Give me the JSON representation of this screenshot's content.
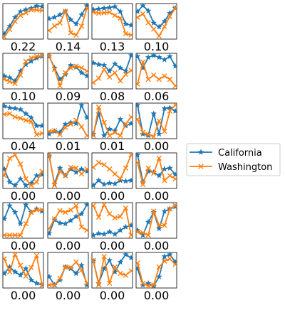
{
  "chart_data": {
    "type": "line",
    "layout": "small-multiples grid (6 rows x 4 columns), each panel with hidden axes and a numeric score printed below",
    "legend": {
      "placement": "right",
      "entries": [
        {
          "name": "California",
          "color": "#1f77b4",
          "marker": "star"
        },
        {
          "name": "Washington",
          "color": "#ff7f0e",
          "marker": "x"
        }
      ]
    },
    "x_points": [
      0,
      1,
      2,
      3,
      4,
      5,
      6,
      7
    ],
    "ylim": [
      0,
      1
    ],
    "panels": [
      {
        "value": "0.22",
        "series": [
          [
            0.12,
            0.35,
            0.62,
            0.8,
            0.86,
            0.9,
            0.97,
            0.95
          ],
          [
            0.03,
            0.25,
            0.5,
            0.68,
            0.76,
            0.85,
            0.85,
            0.83
          ]
        ]
      },
      {
        "value": "0.14",
        "series": [
          [
            0.58,
            0.62,
            0.7,
            0.8,
            0.55,
            0.42,
            0.7,
            0.98
          ],
          [
            0.22,
            0.36,
            0.45,
            0.81,
            0.15,
            0.08,
            0.35,
            0.9
          ]
        ]
      },
      {
        "value": "0.13",
        "series": [
          [
            0.86,
            0.88,
            0.9,
            0.92,
            0.95,
            0.8,
            0.42,
            0.38
          ],
          [
            0.78,
            0.75,
            0.76,
            0.78,
            0.68,
            0.6,
            0.12,
            0.08
          ]
        ]
      },
      {
        "value": "0.10",
        "series": [
          [
            0.8,
            0.98,
            0.82,
            0.45,
            0.33,
            0.5,
            0.75,
            0.9
          ],
          [
            0.62,
            0.73,
            0.46,
            0.26,
            0.05,
            0.34,
            0.65,
            0.9
          ]
        ]
      },
      {
        "value": "0.10",
        "series": [
          [
            0.35,
            0.3,
            0.2,
            0.5,
            0.7,
            0.8,
            0.9,
            0.95
          ],
          [
            0.25,
            0.18,
            0.12,
            0.38,
            0.8,
            0.9,
            0.95,
            0.97
          ]
        ]
      },
      {
        "value": "0.09",
        "series": [
          [
            0.95,
            0.6,
            0.25,
            0.4,
            0.68,
            0.62,
            0.45,
            0.35
          ],
          [
            0.98,
            0.55,
            0.05,
            0.45,
            0.6,
            0.65,
            0.6,
            0.5
          ]
        ]
      },
      {
        "value": "0.08",
        "series": [
          [
            0.75,
            0.7,
            0.68,
            0.5,
            0.72,
            0.6,
            0.5,
            0.98
          ],
          [
            0.15,
            0.28,
            0.55,
            0.32,
            0.45,
            0.2,
            0.4,
            0.52
          ]
        ]
      },
      {
        "value": "0.06",
        "series": [
          [
            0.95,
            0.6,
            0.92,
            0.98,
            0.92,
            0.85,
            0.95,
            0.65
          ],
          [
            0.1,
            0.78,
            0.25,
            0.38,
            0.25,
            0.35,
            0.25,
            0.05
          ]
        ]
      },
      {
        "value": "0.04",
        "series": [
          [
            0.95,
            0.9,
            0.88,
            0.85,
            0.72,
            0.6,
            0.35,
            0.35
          ],
          [
            0.7,
            0.72,
            0.62,
            0.58,
            0.52,
            0.48,
            0.08,
            0.12
          ]
        ]
      },
      {
        "value": "0.01",
        "series": [
          [
            0.1,
            0.18,
            0.15,
            0.4,
            0.45,
            0.42,
            0.98,
            0.6
          ],
          [
            0.18,
            0.2,
            0.08,
            0.3,
            0.4,
            0.52,
            0.32,
            0.05
          ]
        ]
      },
      {
        "value": "0.01",
        "series": [
          [
            0.1,
            0.72,
            0.05,
            0.25,
            0.2,
            0.55,
            0.35,
            0.42
          ],
          [
            0.05,
            0.92,
            0.45,
            0.05,
            0.15,
            0.05,
            0.4,
            0.62
          ]
        ]
      },
      {
        "value": "0.00",
        "series": [
          [
            0.98,
            0.1,
            0.05,
            0.72,
            0.1,
            0.88,
            0.9,
            0.8
          ],
          [
            0.55,
            0.15,
            0.08,
            0.02,
            0.5,
            0.18,
            0.8,
            0.98
          ]
        ]
      },
      {
        "value": "0.00",
        "series": [
          [
            0.55,
            0.15,
            0.05,
            0.25,
            0.05,
            0.12,
            0.35,
            0.38
          ],
          [
            0.35,
            0.88,
            0.98,
            0.7,
            0.25,
            0.05,
            0.15,
            0.48
          ]
        ]
      },
      {
        "value": "0.00",
        "series": [
          [
            0.95,
            0.1,
            0.58,
            0.35,
            0.55,
            0.45,
            0.55,
            0.48
          ],
          [
            0.98,
            0.05,
            0.48,
            0.35,
            0.6,
            0.58,
            0.4,
            0.55
          ]
        ]
      },
      {
        "value": "0.00",
        "series": [
          [
            0.05,
            0.2,
            0.08,
            0.12,
            0.1,
            0.2,
            0.18,
            0.2
          ],
          [
            0.6,
            0.75,
            0.68,
            0.55,
            0.4,
            0.25,
            0.58,
            0.98
          ]
        ]
      },
      {
        "value": "0.00",
        "series": [
          [
            0.98,
            0.15,
            0.48,
            0.45,
            0.35,
            0.55,
            0.58,
            0.38
          ],
          [
            0.75,
            0.08,
            0.58,
            0.42,
            0.88,
            0.2,
            0.35,
            0.25
          ]
        ]
      },
      {
        "value": "0.00",
        "series": [
          [
            0.55,
            0.95,
            0.75,
            0.4,
            0.98,
            0.75,
            0.85,
            0.78
          ],
          [
            0.05,
            0.05,
            0.05,
            0.05,
            0.4,
            0.75,
            0.82,
            0.82
          ]
        ]
      },
      {
        "value": "0.00",
        "series": [
          [
            0.1,
            0.52,
            0.42,
            0.4,
            0.5,
            0.62,
            0.7,
            0.98
          ],
          [
            0.25,
            0.55,
            0.8,
            0.75,
            0.82,
            0.95,
            0.3,
            0.2
          ]
        ]
      },
      {
        "value": "0.00",
        "series": [
          [
            0.05,
            0.1,
            0.08,
            0.15,
            0.08,
            0.2,
            0.3,
            0.35
          ],
          [
            0.95,
            0.6,
            0.98,
            0.7,
            0.58,
            0.62,
            0.88,
            0.05
          ]
        ]
      },
      {
        "value": "0.00",
        "series": [
          [
            0.2,
            0.05,
            0.45,
            0.75,
            0.25,
            0.78,
            0.85,
            0.92
          ],
          [
            0.15,
            0.12,
            0.05,
            0.78,
            0.35,
            0.35,
            0.85,
            0.95
          ]
        ]
      },
      {
        "value": "0.00",
        "series": [
          [
            0.4,
            0.6,
            0.45,
            0.35,
            0.55,
            0.2,
            0.1,
            0.05
          ],
          [
            0.85,
            0.45,
            0.98,
            0.65,
            0.32,
            0.58,
            0.95,
            0.05
          ]
        ]
      },
      {
        "value": "0.00",
        "series": [
          [
            0.3,
            0.05,
            0.2,
            0.6,
            0.55,
            0.4,
            0.65,
            0.05
          ],
          [
            0.05,
            0.05,
            0.25,
            0.6,
            0.58,
            0.75,
            0.5,
            0.1
          ]
        ]
      },
      {
        "value": "0.00",
        "series": [
          [
            0.78,
            0.1,
            0.55,
            0.8,
            0.45,
            0.75,
            0.98,
            0.88
          ],
          [
            0.8,
            0.05,
            0.92,
            0.1,
            0.6,
            0.4,
            0.35,
            0.48
          ]
        ]
      },
      {
        "value": "0.00",
        "series": [
          [
            0.55,
            0.05,
            0.1,
            0.02,
            0.3,
            0.92,
            0.98,
            0.75
          ],
          [
            0.72,
            0.1,
            0.02,
            0.05,
            0.6,
            0.78,
            0.85,
            0.68
          ]
        ]
      }
    ]
  }
}
